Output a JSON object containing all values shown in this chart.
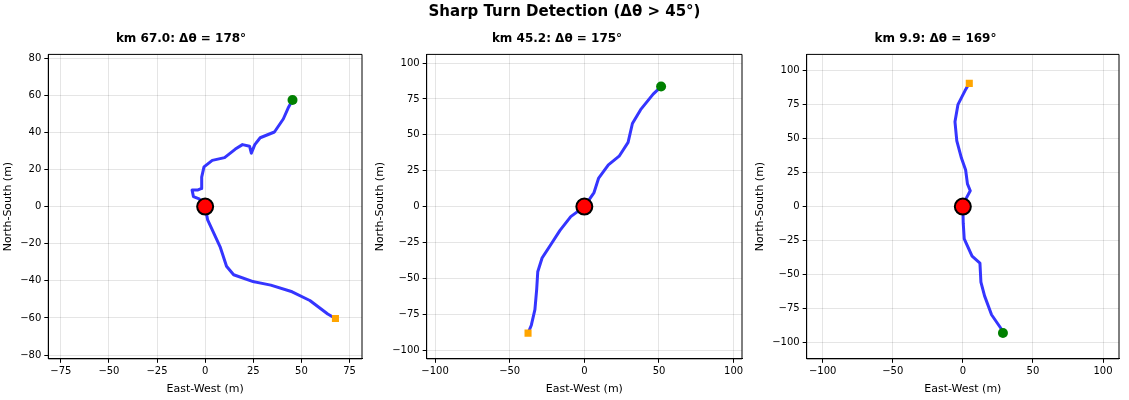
{
  "chart_data": [
    {
      "type": "other",
      "title": "Sharp Turn Detection (Δθ > 45°)"
    },
    {
      "type": "line",
      "title": "km 67.0: Δθ = 178°",
      "xlabel": "East-West (m)",
      "ylabel": "North-South (m)",
      "xlim": [
        -81.5,
        81.5
      ],
      "ylim": [
        -82,
        82
      ],
      "xticks": [
        -75,
        -50,
        -25,
        0,
        25,
        50,
        75
      ],
      "yticks": [
        -80,
        -60,
        -40,
        -20,
        0,
        20,
        40,
        60,
        80
      ],
      "grid": true,
      "legend": false,
      "series": [
        {
          "type": "line",
          "color": "#3535ff",
          "marker": "none",
          "x": [
            45.4,
            43.4,
            40.6,
            36.0,
            28.6,
            25.8,
            24.0,
            23.1,
            19.4,
            15.7,
            10.1,
            3.7,
            -0.6,
            -1.8,
            -1.8,
            -3.7,
            -6.8,
            -6.1,
            -3.1,
            0,
            1.3,
            4.6,
            7.9,
            11.1,
            14.8,
            24.9,
            34.1,
            45.2,
            54.4,
            63.7,
            67.7
          ],
          "values": [
            57.4,
            53.7,
            47.2,
            40.2,
            37.1,
            33.4,
            28.8,
            32.5,
            33.4,
            31.0,
            26.4,
            24.9,
            21.4,
            15.9,
            9.8,
            9.0,
            9.0,
            5.4,
            4.2,
            0,
            -7.2,
            -14.6,
            -22.0,
            -32.1,
            -36.7,
            -40.4,
            -42.3,
            -45.9,
            -50.6,
            -57.9,
            -60.3
          ]
        },
        {
          "type": "scatter",
          "color": "#008000",
          "marker": "circle",
          "x": [
            45.4
          ],
          "values": [
            57.4
          ]
        },
        {
          "type": "scatter",
          "color": "#ffa500",
          "marker": "square",
          "x": [
            67.7
          ],
          "values": [
            -60.3
          ]
        },
        {
          "type": "scatter",
          "color": "#ff0000",
          "marker": "circle",
          "x": [
            0
          ],
          "values": [
            0
          ]
        }
      ]
    },
    {
      "type": "line",
      "title": "km 45.2: Δθ = 175°",
      "xlabel": "East-West (m)",
      "ylabel": "North-South (m)",
      "xlim": [
        -105.6,
        105.6
      ],
      "ylim": [
        -106,
        106
      ],
      "xticks": [
        -100,
        -50,
        0,
        50,
        100
      ],
      "yticks": [
        -100,
        -75,
        -50,
        -25,
        0,
        25,
        50,
        75,
        100
      ],
      "grid": true,
      "legend": false,
      "series": [
        {
          "type": "line",
          "color": "#3535ff",
          "marker": "none",
          "x": [
            51.4,
            46.1,
            37.7,
            32.2,
            29.3,
            23.3,
            16.1,
            9.6,
            6.5,
            0,
            -9.1,
            -16.3,
            -22.3,
            -28.3,
            -31.2,
            -31.9,
            -33.1,
            -35.5,
            -37.7
          ],
          "values": [
            83.6,
            78.3,
            67.5,
            57.9,
            44.7,
            35.1,
            29.1,
            19.9,
            9.8,
            0,
            -7.0,
            -16.6,
            -26.2,
            -35.8,
            -45.4,
            -57.4,
            -71.8,
            -82.6,
            -88.1
          ]
        },
        {
          "type": "scatter",
          "color": "#008000",
          "marker": "circle",
          "x": [
            51.4
          ],
          "values": [
            83.6
          ]
        },
        {
          "type": "scatter",
          "color": "#ffa500",
          "marker": "square",
          "x": [
            -37.7
          ],
          "values": [
            -88.1
          ]
        },
        {
          "type": "scatter",
          "color": "#ff0000",
          "marker": "circle",
          "x": [
            0
          ],
          "values": [
            0
          ]
        }
      ]
    },
    {
      "type": "line",
      "title": "km 9.9: Δθ = 169°",
      "xlabel": "East-West (m)",
      "ylabel": "North-South (m)",
      "xlim": [
        -111.4,
        111.4
      ],
      "ylim": [
        -112,
        112
      ],
      "xticks": [
        -100,
        -50,
        0,
        50,
        100
      ],
      "yticks": [
        -100,
        -75,
        -50,
        -25,
        0,
        25,
        50,
        75,
        100
      ],
      "grid": true,
      "legend": false,
      "series": [
        {
          "type": "line",
          "color": "#3535ff",
          "marker": "none",
          "x": [
            28.6,
            28.1,
            20.5,
            15.5,
            12.9,
            12.2,
            6.6,
            1.0,
            0.3,
            0,
            2.0,
            5.3,
            3.3,
            2.0,
            -1.0,
            -4.3,
            -5.6,
            -3.5,
            1.5,
            4.6
          ],
          "values": [
            -93.0,
            -91.0,
            -79.6,
            -65.7,
            -55.5,
            -41.6,
            -36.5,
            -23.8,
            -12.4,
            0,
            5.3,
            11.7,
            16.7,
            26.9,
            35.7,
            48.4,
            62.4,
            75.0,
            85.2,
            90.7
          ]
        },
        {
          "type": "scatter",
          "color": "#008000",
          "marker": "circle",
          "x": [
            28.6
          ],
          "values": [
            -93.0
          ]
        },
        {
          "type": "scatter",
          "color": "#ffa500",
          "marker": "square",
          "x": [
            4.6
          ],
          "values": [
            90.7
          ]
        },
        {
          "type": "scatter",
          "color": "#ff0000",
          "marker": "circle",
          "x": [
            0
          ],
          "values": [
            0
          ]
        }
      ]
    }
  ]
}
